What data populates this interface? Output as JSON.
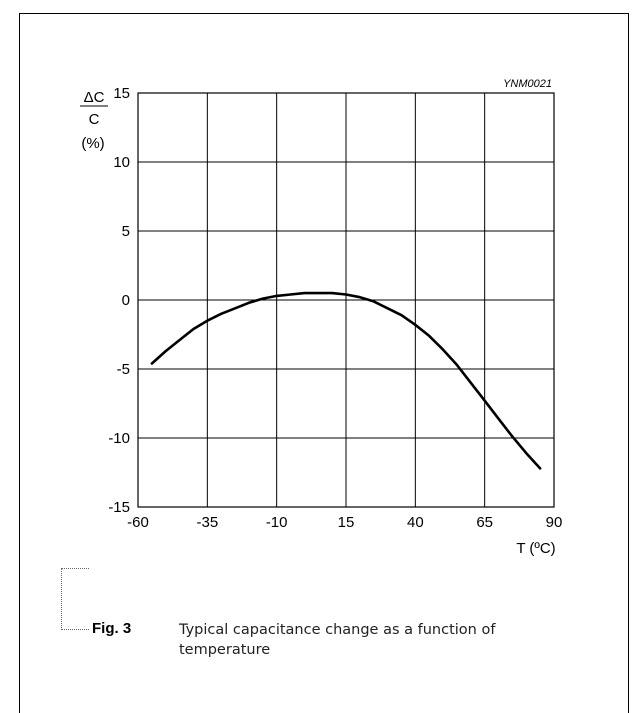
{
  "figure": {
    "label": "Fig. 3",
    "caption": "Typical capacitance change as a function of temperature",
    "code": "YNM0021"
  },
  "chart_data": {
    "type": "line",
    "title": "",
    "xlabel": "T (ºC)",
    "ylabel_top": "ΔC",
    "ylabel_mid": "C",
    "ylabel_unit": "(%)",
    "xlim": [
      -60,
      90
    ],
    "ylim": [
      -15,
      15
    ],
    "x_ticks": [
      -60,
      -35,
      -10,
      15,
      40,
      65,
      90
    ],
    "x_tick_labels": [
      "-60",
      "-35",
      "-10",
      "15",
      "40",
      "65",
      "90"
    ],
    "y_ticks": [
      15,
      10,
      5,
      0,
      -5,
      -10,
      -15
    ],
    "y_tick_labels": [
      "15",
      "10",
      "5",
      "0",
      "-5",
      "-10",
      "-15"
    ],
    "grid": true,
    "series": [
      {
        "x": [
          -55,
          -50,
          -45,
          -40,
          -35,
          -30,
          -25,
          -20,
          -15,
          -10,
          -5,
          0,
          5,
          10,
          15,
          20,
          25,
          30,
          35,
          40,
          45,
          50,
          55,
          60,
          65,
          70,
          75,
          80,
          85
        ],
        "y": [
          -4.6,
          -3.7,
          -2.9,
          -2.1,
          -1.5,
          -1.0,
          -0.6,
          -0.2,
          0.1,
          0.3,
          0.4,
          0.5,
          0.5,
          0.5,
          0.4,
          0.2,
          -0.1,
          -0.6,
          -1.1,
          -1.8,
          -2.6,
          -3.6,
          -4.7,
          -6.0,
          -7.3,
          -8.6,
          -9.9,
          -11.1,
          -12.2
        ]
      }
    ]
  }
}
